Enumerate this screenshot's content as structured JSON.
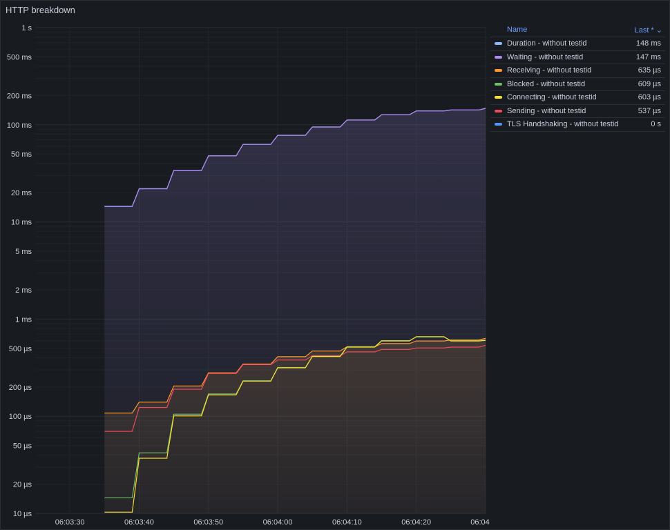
{
  "panel": {
    "title": "HTTP breakdown"
  },
  "legend": {
    "name_header": "Name",
    "last_header": "Last *",
    "sort_icon": "chevron-down-icon"
  },
  "chart_data": {
    "type": "line",
    "title": "HTTP breakdown",
    "y_scale": "log10",
    "ylim_seconds": [
      1e-05,
      1
    ],
    "y_ticks": [
      {
        "v": 1,
        "label": "1 s"
      },
      {
        "v": 0.5,
        "label": "500 ms"
      },
      {
        "v": 0.2,
        "label": "200 ms"
      },
      {
        "v": 0.1,
        "label": "100 ms"
      },
      {
        "v": 0.05,
        "label": "50 ms"
      },
      {
        "v": 0.02,
        "label": "20 ms"
      },
      {
        "v": 0.01,
        "label": "10 ms"
      },
      {
        "v": 0.005,
        "label": "5 ms"
      },
      {
        "v": 0.002,
        "label": "2 ms"
      },
      {
        "v": 0.001,
        "label": "1 ms"
      },
      {
        "v": 0.0005,
        "label": "500 µs"
      },
      {
        "v": 0.0002,
        "label": "200 µs"
      },
      {
        "v": 0.0001,
        "label": "100 µs"
      },
      {
        "v": 5e-05,
        "label": "50 µs"
      },
      {
        "v": 2e-05,
        "label": "20 µs"
      },
      {
        "v": 1e-05,
        "label": "10 µs"
      }
    ],
    "x_ticks": [
      "06:03:30",
      "06:03:40",
      "06:03:50",
      "06:04:00",
      "06:04:10",
      "06:04:20",
      "06:04"
    ],
    "xlim": [
      "06:03:25",
      "06:04:30"
    ],
    "grid": true,
    "legend_position": "right",
    "times": [
      "06:03:35",
      "06:03:39",
      "06:03:40",
      "06:03:44",
      "06:03:45",
      "06:03:49",
      "06:03:50",
      "06:03:54",
      "06:03:55",
      "06:03:59",
      "06:04:00",
      "06:04:04",
      "06:04:05",
      "06:04:09",
      "06:04:10",
      "06:04:14",
      "06:04:15",
      "06:04:19",
      "06:04:20",
      "06:04:24",
      "06:04:25",
      "06:04:29",
      "06:04:30"
    ],
    "series": [
      {
        "name": "Duration - without testid",
        "last": "148 ms",
        "color": "#8ab8ff",
        "fill": true,
        "values": [
          0.0145,
          0.0145,
          0.022,
          0.022,
          0.034,
          0.034,
          0.048,
          0.048,
          0.063,
          0.063,
          0.078,
          0.078,
          0.095,
          0.095,
          0.112,
          0.112,
          0.127,
          0.127,
          0.139,
          0.139,
          0.142,
          0.142,
          0.148
        ]
      },
      {
        "name": "Waiting - without testid",
        "last": "147 ms",
        "color": "#b088f2",
        "fill": true,
        "values": [
          0.0144,
          0.0144,
          0.0219,
          0.0219,
          0.0338,
          0.0338,
          0.0478,
          0.0478,
          0.0628,
          0.0628,
          0.0778,
          0.0778,
          0.0948,
          0.0948,
          0.1118,
          0.1118,
          0.1268,
          0.1268,
          0.1388,
          0.1388,
          0.1418,
          0.1418,
          0.147
        ]
      },
      {
        "name": "Receiving - without testid",
        "last": "635 µs",
        "color": "#ff9830",
        "fill": true,
        "values": [
          0.000108,
          0.000108,
          0.00014,
          0.00014,
          0.000205,
          0.000205,
          0.00028,
          0.00028,
          0.000345,
          0.000345,
          0.00041,
          0.00041,
          0.00047,
          0.00047,
          0.00052,
          0.00052,
          0.00056,
          0.00056,
          0.000595,
          0.000595,
          0.00061,
          0.00061,
          0.000635
        ]
      },
      {
        "name": "Blocked - without testid",
        "last": "609 µs",
        "color": "#73bf69",
        "fill": true,
        "values": [
          1.45e-05,
          1.45e-05,
          4.2e-05,
          4.2e-05,
          0.000105,
          0.000105,
          0.00017,
          0.00017,
          0.000232,
          0.000232,
          0.000318,
          0.000318,
          0.000415,
          0.000415,
          0.00052,
          0.00052,
          0.0006,
          0.0006,
          0.000655,
          0.000655,
          0.0006,
          0.0006,
          0.000609
        ]
      },
      {
        "name": "Connecting - without testid",
        "last": "603 µs",
        "color": "#fade2a",
        "fill": true,
        "values": [
          1.03e-05,
          1.03e-05,
          3.7e-05,
          3.7e-05,
          0.000101,
          0.000101,
          0.000166,
          0.000166,
          0.00023,
          0.00023,
          0.000315,
          0.000315,
          0.000412,
          0.000412,
          0.000515,
          0.000515,
          0.000595,
          0.000595,
          0.00066,
          0.00066,
          0.000595,
          0.000595,
          0.000603
        ]
      },
      {
        "name": "Sending - without testid",
        "last": "537 µs",
        "color": "#f2495c",
        "fill": true,
        "values": [
          7e-05,
          7e-05,
          0.000123,
          0.000123,
          0.00019,
          0.00019,
          0.000275,
          0.000275,
          0.00034,
          0.00034,
          0.00038,
          0.00038,
          0.00042,
          0.00042,
          0.00046,
          0.00046,
          0.000488,
          0.000488,
          0.000505,
          0.000505,
          0.000515,
          0.000515,
          0.000537
        ]
      },
      {
        "name": "TLS Handshaking - without testid",
        "last": "0 s",
        "color": "#5794f2",
        "fill": false,
        "values": []
      }
    ]
  }
}
